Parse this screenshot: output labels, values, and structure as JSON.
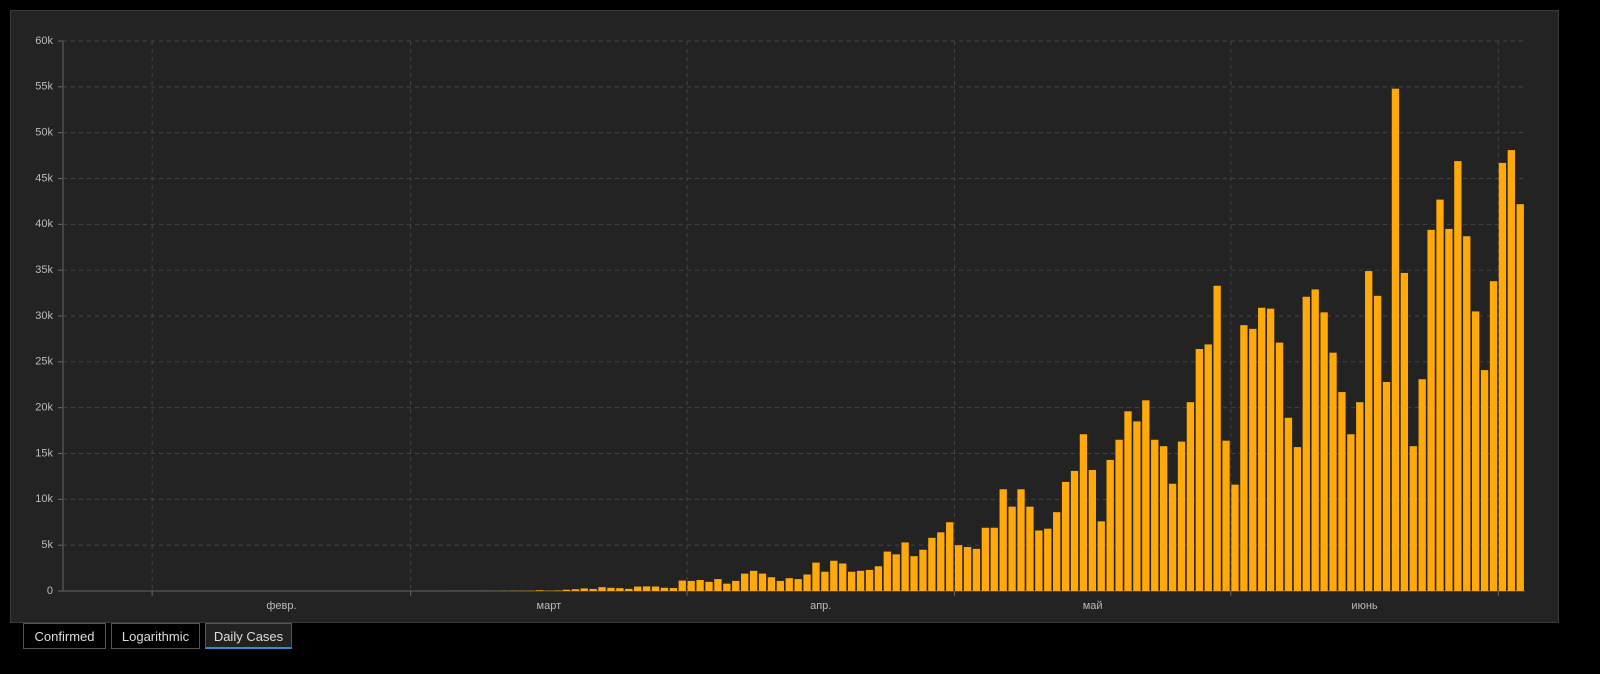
{
  "chart_data": {
    "type": "bar",
    "color": "#ffa90b",
    "ylim": [
      0,
      60000
    ],
    "yticks": [
      0,
      {
        "value": 5000,
        "label": "5k"
      },
      {
        "value": 10000,
        "label": "10k"
      },
      {
        "value": 15000,
        "label": "15k"
      },
      {
        "value": 20000,
        "label": "20k"
      },
      {
        "value": 25000,
        "label": "25k"
      },
      {
        "value": 30000,
        "label": "30k"
      },
      {
        "value": 35000,
        "label": "35k"
      },
      {
        "value": 40000,
        "label": "40k"
      },
      {
        "value": 45000,
        "label": "45k"
      },
      {
        "value": 50000,
        "label": "50k"
      },
      {
        "value": 55000,
        "label": "55k"
      },
      {
        "value": 60000,
        "label": "60k"
      }
    ],
    "xlim": [
      0,
      164
    ],
    "months": [
      {
        "label": "февр.",
        "start": 10,
        "end": 39
      },
      {
        "label": "март",
        "start": 39,
        "end": 70
      },
      {
        "label": "апр.",
        "start": 70,
        "end": 100
      },
      {
        "label": "май",
        "start": 100,
        "end": 131
      },
      {
        "label": "июнь",
        "start": 131,
        "end": 161
      }
    ],
    "grid": true,
    "values": [
      0,
      0,
      0,
      0,
      0,
      0,
      0,
      0,
      0,
      0,
      0,
      0,
      0,
      0,
      0,
      0,
      0,
      0,
      0,
      0,
      0,
      0,
      0,
      0,
      0,
      0,
      0,
      0,
      0,
      0,
      0,
      0,
      0,
      0,
      0,
      1,
      0,
      0,
      1,
      0,
      0,
      0,
      2,
      5,
      5,
      6,
      5,
      12,
      0,
      18,
      25,
      21,
      23,
      79,
      34,
      57,
      137,
      193,
      283,
      224,
      418,
      345,
      310,
      232,
      482,
      502,
      487,
      352,
      323,
      1138,
      1100,
      1200,
      1000,
      1300,
      800,
      1100,
      1900,
      2200,
      1900,
      1500,
      1100,
      1400,
      1300,
      1800,
      3100,
      2100,
      3300,
      3000,
      2100,
      2200,
      2300,
      2700,
      4300,
      4000,
      5300,
      3800,
      4500,
      5800,
      6400,
      7500,
      5000,
      4800,
      4600,
      6900,
      6900,
      11100,
      9200,
      11100,
      9200,
      6600,
      6800,
      8600,
      11900,
      13100,
      17100,
      13200,
      7600,
      14300,
      16500,
      19600,
      18500,
      20800,
      16500,
      15800,
      11700,
      16300,
      20600,
      26400,
      26900,
      33300,
      16400,
      11600,
      29000,
      28600,
      30900,
      30800,
      27100,
      18900,
      15700,
      32100,
      32900,
      30400,
      26000,
      21700,
      17100,
      20600,
      34900,
      32200,
      22800,
      54800,
      34700,
      15800,
      23100,
      39400,
      42700,
      39500,
      46900,
      38700,
      30500,
      24100,
      33800,
      46700,
      48100,
      42200
    ]
  },
  "buttons": [
    "Confirmed",
    "Logarithmic",
    "Daily Cases"
  ],
  "active_button": 2
}
